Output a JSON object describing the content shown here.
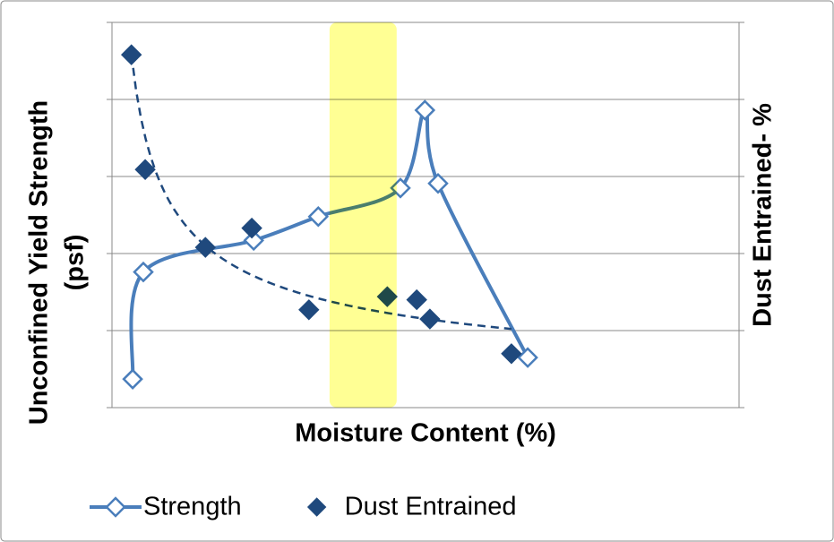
{
  "chart_data": {
    "type": "scatter",
    "xlabel": "Moisture Content (%)",
    "ylabel": [
      "Unconfined Yield Strength",
      "(psf)"
    ],
    "y2label": "Dust Entrained- %",
    "xlim": [
      0,
      10
    ],
    "ylim": [
      0,
      5
    ],
    "yticks": [
      0,
      1,
      2,
      3,
      4,
      5
    ],
    "y2lim": [
      0,
      5
    ],
    "y2ticks": [
      0,
      1,
      2,
      3,
      4,
      5
    ],
    "grid": true,
    "highlight": {
      "x": [
        3.47,
        4.54
      ],
      "color": "#ffff66"
    },
    "series": [
      {
        "name": "Strength",
        "color": "#4a7ebb",
        "line": "smooth",
        "marker": "hollow-diamond",
        "x": [
          0.33,
          0.5,
          2.26,
          3.29,
          4.6,
          4.99,
          5.2,
          6.63
        ],
        "values": [
          0.37,
          1.76,
          2.17,
          2.48,
          2.85,
          3.86,
          2.91,
          0.65
        ]
      },
      {
        "name": "Dust Entrained",
        "color": "#1f497d",
        "line": "power-trend",
        "marker": "diamond",
        "axis": "y2",
        "x": [
          0.31,
          0.53,
          1.49,
          2.23,
          3.14,
          4.39,
          4.86,
          5.07,
          6.37
        ],
        "values": [
          4.58,
          3.09,
          2.08,
          2.33,
          1.27,
          1.44,
          1.4,
          1.15,
          0.7
        ]
      }
    ],
    "legend": "bottom"
  }
}
